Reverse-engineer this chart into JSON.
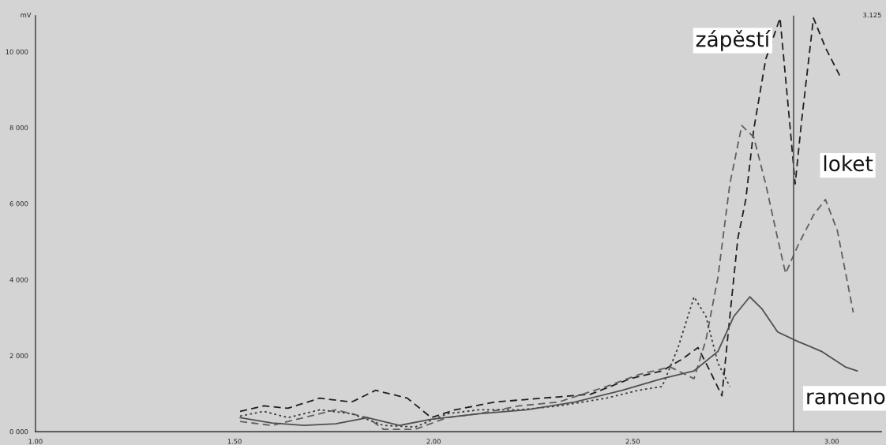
{
  "chart_data": {
    "type": "line",
    "ylabel": "mV",
    "xlim": [
      1.0,
      3.125
    ],
    "xticks": [
      {
        "value": 1.0,
        "label": "1.00"
      },
      {
        "value": 1.5,
        "label": "1.50"
      },
      {
        "value": 2.0,
        "label": "2.00"
      },
      {
        "value": 2.5,
        "label": "2.50"
      },
      {
        "value": 3.0,
        "label": "3.00"
      }
    ],
    "ylim": [
      0,
      10950
    ],
    "yticks": [
      {
        "value": 0,
        "label": "0 000"
      },
      {
        "value": 2000,
        "label": "2 000"
      },
      {
        "value": 4000,
        "label": "4 000"
      },
      {
        "value": 6000,
        "label": "6 000"
      },
      {
        "value": 8000,
        "label": "8 000"
      },
      {
        "value": 10000,
        "label": "10 000"
      }
    ],
    "grid": false,
    "marker": "none",
    "series": [
      {
        "name": "zápěstí",
        "color": "#202020",
        "line_style": "dashed",
        "x": [
          1.514,
          1.574,
          1.634,
          1.714,
          1.794,
          1.854,
          1.934,
          1.994,
          2.054,
          2.154,
          2.274,
          2.394,
          2.494,
          2.574,
          2.624,
          2.664,
          2.694,
          2.724,
          2.744,
          2.764,
          2.784,
          2.804,
          2.834,
          2.87,
          2.894,
          2.908,
          2.924,
          2.954,
          2.984,
          3.024
        ],
        "values": [
          533,
          677,
          615,
          882,
          779,
          1087,
          882,
          369,
          574,
          779,
          882,
          984,
          1394,
          1599,
          1907,
          2214,
          1599,
          943,
          3034,
          5084,
          6109,
          7954,
          9799,
          10886,
          8159,
          6519,
          8159,
          10886,
          10107,
          9287
        ]
      },
      {
        "name": "loket",
        "color": "#606060",
        "line_style": "dashed",
        "x": [
          1.514,
          1.594,
          1.674,
          1.754,
          1.834,
          1.874,
          1.954,
          2.034,
          2.114,
          2.214,
          2.314,
          2.434,
          2.514,
          2.594,
          2.654,
          2.684,
          2.714,
          2.744,
          2.774,
          2.804,
          2.834,
          2.864,
          2.884,
          2.914,
          2.954,
          2.984,
          3.014,
          3.054
        ],
        "values": [
          267,
          164,
          369,
          574,
          369,
          62,
          62,
          369,
          472,
          677,
          779,
          1189,
          1497,
          1702,
          1394,
          2419,
          4059,
          6519,
          8057,
          7749,
          6519,
          5084,
          4162,
          4879,
          5699,
          6109,
          5289,
          3137
        ]
      },
      {
        "color": "#3a3a3a",
        "line_style": "dotted",
        "x": [
          1.514,
          1.574,
          1.634,
          1.714,
          1.794,
          1.874,
          1.954,
          2.034,
          2.114,
          2.214,
          2.314,
          2.434,
          2.514,
          2.574,
          2.614,
          2.654,
          2.684,
          2.714,
          2.744
        ],
        "values": [
          410,
          533,
          369,
          574,
          472,
          164,
          123,
          472,
          574,
          574,
          677,
          882,
          1087,
          1189,
          2214,
          3547,
          3034,
          1804,
          1189
        ]
      },
      {
        "name": "rameno",
        "color": "#505050",
        "line_style": "solid",
        "x": [
          1.514,
          1.594,
          1.674,
          1.754,
          1.834,
          1.914,
          1.994,
          2.114,
          2.234,
          2.354,
          2.474,
          2.574,
          2.654,
          2.714,
          2.754,
          2.794,
          2.824,
          2.864,
          2.914,
          2.974,
          3.034,
          3.064
        ],
        "values": [
          369,
          226,
          164,
          205,
          369,
          164,
          328,
          472,
          574,
          779,
          1087,
          1394,
          1599,
          2112,
          3034,
          3547,
          3239,
          2624,
          2378,
          2112,
          1702,
          1599
        ]
      }
    ],
    "ref_lines": [
      {
        "axis": "x",
        "value": 2.904,
        "color": "#555555",
        "line_style": "solid"
      }
    ],
    "annotations": [
      "3.125"
    ]
  }
}
